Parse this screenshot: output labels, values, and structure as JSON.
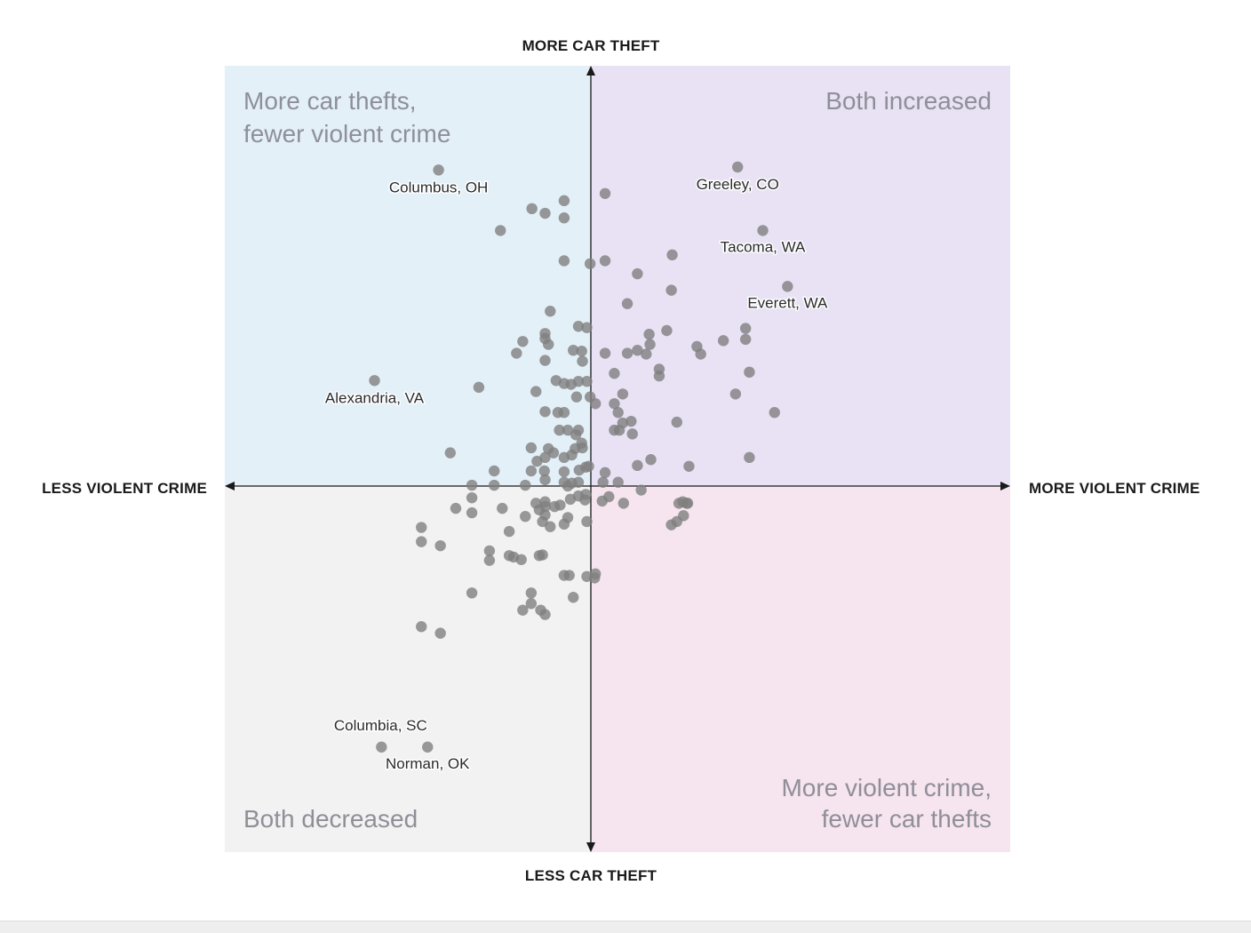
{
  "chart_data": {
    "type": "scatter",
    "x_axis": {
      "negative_label": "LESS VIOLENT CRIME",
      "positive_label": "MORE VIOLENT CRIME",
      "range": [
        -100,
        100
      ]
    },
    "y_axis": {
      "negative_label": "LESS CAR THEFT",
      "positive_label": "MORE CAR THEFT",
      "range": [
        -100,
        100
      ]
    },
    "quadrants": [
      {
        "position": "top-left",
        "label_lines": [
          "More car thefts,",
          "fewer violent crime"
        ],
        "color": "#e3f0f8"
      },
      {
        "position": "top-right",
        "label_lines": [
          "Both increased"
        ],
        "color": "#e8e2f4"
      },
      {
        "position": "bottom-left",
        "label_lines": [
          "Both decreased"
        ],
        "color": "#f2f2f2"
      },
      {
        "position": "bottom-right",
        "label_lines": [
          "More violent crime,",
          "fewer car thefts"
        ],
        "color": "#f6e4ef"
      }
    ],
    "point_color": "#808080",
    "labeled_points": [
      {
        "name": "Greeley, CO",
        "x": 35,
        "y": 75.9
      },
      {
        "name": "Columbus, OH",
        "x": -41.6,
        "y": 75.2
      },
      {
        "name": "Tacoma, WA",
        "x": 41,
        "y": 60.8
      },
      {
        "name": "Everett, WA",
        "x": 46.9,
        "y": 47.5
      },
      {
        "name": "Alexandria, VA",
        "x": -59.1,
        "y": 25.1
      },
      {
        "name": "Columbia, SC",
        "x": -57.2,
        "y": -71.3
      },
      {
        "name": "Norman, OK",
        "x": -44.6,
        "y": -71.3
      }
    ],
    "points": [
      [
        -7.3,
        67.9
      ],
      [
        -7.3,
        63.8
      ],
      [
        -16.1,
        66
      ],
      [
        -12.5,
        64.9
      ],
      [
        -24.7,
        60.8
      ],
      [
        3.4,
        69.6
      ],
      [
        -7.3,
        53.6
      ],
      [
        -0.2,
        52.9
      ],
      [
        3.4,
        53.6
      ],
      [
        11.1,
        50.5
      ],
      [
        19.4,
        55
      ],
      [
        19.2,
        46.6
      ],
      [
        8.7,
        43.4
      ],
      [
        -11.1,
        41.6
      ],
      [
        -1.1,
        37.7
      ],
      [
        -3.4,
        38
      ],
      [
        -12.5,
        36.3
      ],
      [
        -12.5,
        35.1
      ],
      [
        -18.6,
        34.4
      ],
      [
        -20.3,
        31.6
      ],
      [
        -11.6,
        33.7
      ],
      [
        -4.8,
        32.3
      ],
      [
        -2.5,
        32.1
      ],
      [
        -2.3,
        29.7
      ],
      [
        -12.5,
        29.9
      ],
      [
        3.4,
        31.6
      ],
      [
        8.7,
        31.6
      ],
      [
        11.1,
        32.3
      ],
      [
        13.2,
        31.4
      ],
      [
        14.1,
        33.7
      ],
      [
        13.9,
        36.1
      ],
      [
        18.1,
        37
      ],
      [
        25.3,
        33.2
      ],
      [
        26.2,
        31.4
      ],
      [
        31.6,
        34.6
      ],
      [
        36.9,
        34.9
      ],
      [
        36.9,
        37.5
      ],
      [
        16.3,
        26.2
      ],
      [
        16.3,
        27.8
      ],
      [
        5.6,
        26.8
      ],
      [
        7.6,
        21.9
      ],
      [
        -3.4,
        24.9
      ],
      [
        -5.4,
        24.2
      ],
      [
        -7.3,
        24.4
      ],
      [
        -9.5,
        25.1
      ],
      [
        -1.1,
        24.9
      ],
      [
        -30.6,
        23.5
      ],
      [
        -15,
        22.5
      ],
      [
        -3.9,
        21.2
      ],
      [
        -0.2,
        21.2
      ],
      [
        1.1,
        19.6
      ],
      [
        5.6,
        19.6
      ],
      [
        -7.3,
        17.5
      ],
      [
        -9,
        17.5
      ],
      [
        -12.5,
        17.7
      ],
      [
        6.5,
        17.5
      ],
      [
        7.6,
        15
      ],
      [
        9.6,
        15.4
      ],
      [
        20.5,
        15.2
      ],
      [
        37.8,
        27.1
      ],
      [
        34.5,
        21.9
      ],
      [
        43.8,
        17.5
      ],
      [
        -3.4,
        13.3
      ],
      [
        -6.3,
        13.3
      ],
      [
        -8.6,
        13.3
      ],
      [
        -4.1,
        12.2
      ],
      [
        -2.5,
        10.2
      ],
      [
        5.6,
        13.3
      ],
      [
        6.8,
        13.3
      ],
      [
        9.9,
        12.4
      ],
      [
        -11.6,
        8.9
      ],
      [
        -16.3,
        9.1
      ],
      [
        -5.2,
        7.4
      ],
      [
        -7.3,
        6.8
      ],
      [
        -10.2,
        7.9
      ],
      [
        -2.3,
        9.1
      ],
      [
        -4.3,
        8.9
      ],
      [
        -12.5,
        6.8
      ],
      [
        -14.7,
        5.9
      ],
      [
        -16.3,
        3.6
      ],
      [
        -12.7,
        3.6
      ],
      [
        -7.3,
        3.4
      ],
      [
        -3.2,
        3.8
      ],
      [
        -1.4,
        4.5
      ],
      [
        -0.6,
        4.7
      ],
      [
        3.4,
        3.2
      ],
      [
        11.1,
        4.9
      ],
      [
        14.3,
        6.3
      ],
      [
        23.4,
        4.7
      ],
      [
        37.8,
        6.8
      ],
      [
        -38.4,
        7.9
      ],
      [
        -26.4,
        3.6
      ],
      [
        -32.5,
        0.2
      ],
      [
        -26.4,
        0.2
      ],
      [
        -17.9,
        0.2
      ],
      [
        -12.5,
        1.5
      ],
      [
        -7.3,
        0.9
      ],
      [
        -6.3,
        0
      ],
      [
        -5.2,
        0.7
      ],
      [
        -3.4,
        0.9
      ],
      [
        2.9,
        0.9
      ],
      [
        6.5,
        0.9
      ],
      [
        12,
        -1.1
      ],
      [
        -32.5,
        -3.2
      ],
      [
        -32.5,
        -7.3
      ],
      [
        -36.9,
        -6.1
      ],
      [
        -24.2,
        -6.1
      ],
      [
        -15,
        -4.7
      ],
      [
        -14.1,
        -6.5
      ],
      [
        -12.5,
        -4.3
      ],
      [
        -12.5,
        -5.6
      ],
      [
        -12.5,
        -7.9
      ],
      [
        -9.9,
        -5.6
      ],
      [
        -8.4,
        -5.2
      ],
      [
        -5.6,
        -3.6
      ],
      [
        -3.4,
        -2.7
      ],
      [
        -1.6,
        -3.8
      ],
      [
        -1.4,
        -2.3
      ],
      [
        2.7,
        -4.1
      ],
      [
        4.3,
        -2.9
      ],
      [
        7.8,
        -4.7
      ],
      [
        21,
        -4.7
      ],
      [
        22.8,
        -4.7
      ],
      [
        -17.9,
        -8.3
      ],
      [
        -13.2,
        -9.7
      ],
      [
        -11.1,
        -11.1
      ],
      [
        -7.3,
        -10.4
      ],
      [
        -6.3,
        -8.6
      ],
      [
        -1.1,
        -9.7
      ],
      [
        -46.3,
        -11.3
      ],
      [
        -46.3,
        -15.2
      ],
      [
        -41.1,
        -16.3
      ],
      [
        -22.3,
        -12.4
      ],
      [
        -13.2,
        -18.8
      ],
      [
        -27.7,
        -17.7
      ],
      [
        -27.7,
        -20.3
      ],
      [
        -22.3,
        -19
      ],
      [
        -21.1,
        -19.4
      ],
      [
        -19,
        -20.1
      ],
      [
        -14.1,
        -19
      ],
      [
        -7.3,
        -24.4
      ],
      [
        -5.9,
        -24.4
      ],
      [
        -1.1,
        -24.7
      ],
      [
        0.9,
        -25.1
      ],
      [
        1.1,
        -24
      ],
      [
        -4.8,
        -30.4
      ],
      [
        -32.5,
        -29.2
      ],
      [
        -16.3,
        -29.2
      ],
      [
        -16.3,
        -32.1
      ],
      [
        -18.6,
        -33.9
      ],
      [
        -13.7,
        -33.9
      ],
      [
        -12.5,
        -35.1
      ],
      [
        -46.3,
        -38.4
      ],
      [
        -41.1,
        -40.2
      ],
      [
        19.2,
        -10.6
      ],
      [
        21.9,
        -4.3
      ],
      [
        22.1,
        -8.1
      ],
      [
        20.5,
        -9.7
      ],
      [
        23.1,
        -4.7
      ]
    ]
  }
}
